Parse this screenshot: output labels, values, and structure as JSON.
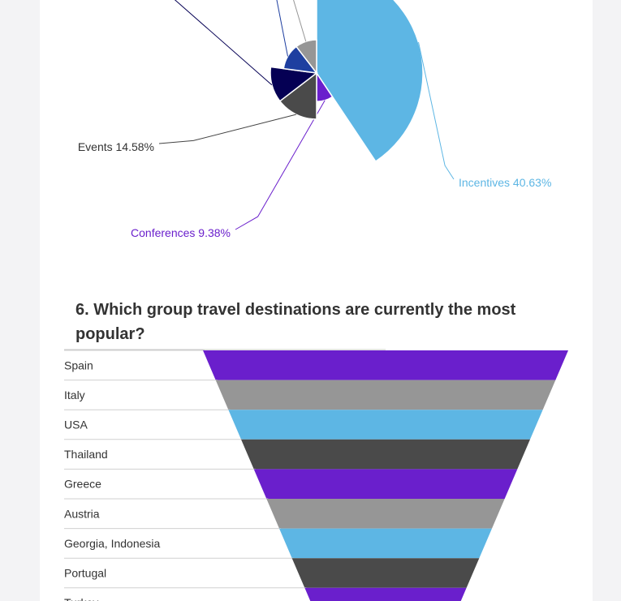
{
  "pie_chart": {
    "type": "pie",
    "slices": [
      {
        "label": "Incentives",
        "value": 40.63,
        "display": "Incentives 40.63%",
        "color": "#5db6e4",
        "labelled": true,
        "emphasis": 2.3
      },
      {
        "label": "Conferences",
        "value": 9.38,
        "display": "Conferences 9.38%",
        "color": "#6a1fcc",
        "labelled": true,
        "emphasis": 0.62
      },
      {
        "label": "Events",
        "value": 14.58,
        "display": "Events 14.58%",
        "color": "#4a4a4a",
        "labelled": true,
        "emphasis": 1.0
      },
      {
        "label": "",
        "value": 12.5,
        "display": "",
        "color": "#050054",
        "labelled": false,
        "emphasis": 1.0
      },
      {
        "label": "",
        "value": 12.5,
        "display": "",
        "color": "#1e3fa0",
        "labelled": false,
        "emphasis": 0.72
      },
      {
        "label": "",
        "value": 10.41,
        "display": "",
        "color": "#969696",
        "labelled": false,
        "emphasis": 0.72
      }
    ]
  },
  "question": {
    "title": "6. Which group travel destinations are currently the most popular?"
  },
  "chart_data": {
    "type": "bar",
    "style": "funnel",
    "categories": [
      "Spain",
      "Italy",
      "USA",
      "Thailand",
      "Greece",
      "Austria",
      "Georgia, Indonesia",
      "Portugal",
      "Turkey"
    ],
    "values": [
      9,
      8,
      7,
      6,
      5,
      4,
      3,
      2,
      1
    ],
    "colors": [
      "#6a1fcc",
      "#969696",
      "#5db6e4",
      "#4a4a4a"
    ]
  }
}
